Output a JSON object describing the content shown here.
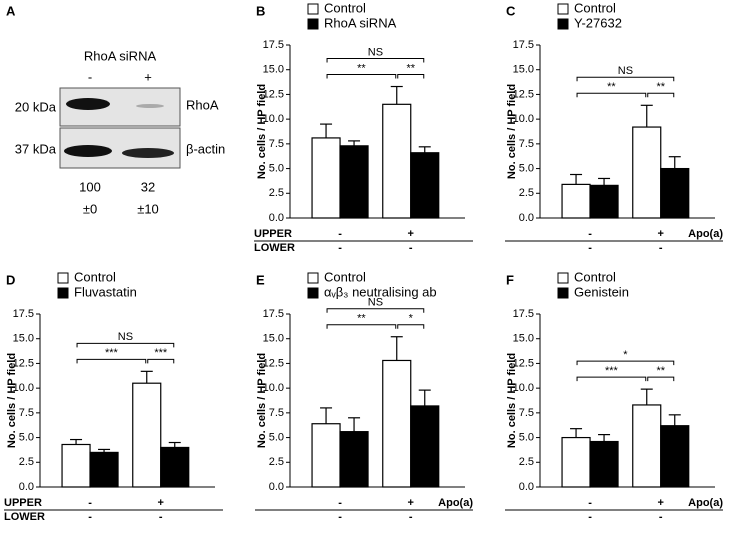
{
  "blot": {
    "panel": "A",
    "title": "RhoA siRNA",
    "lanes": [
      "-",
      "+"
    ],
    "markers": [
      "20 kDa",
      "37 kDa"
    ],
    "bands": [
      "RhoA",
      "β-actin"
    ],
    "quant": [
      [
        "100",
        "±0"
      ],
      [
        "32",
        "±10"
      ]
    ]
  },
  "chart_data": [
    {
      "type": "bar",
      "panel": "B",
      "ylabel": "No. cells / HP field",
      "ylim": [
        0,
        17.5
      ],
      "yticks": [
        {
          "value": 0,
          "label": "0.0"
        },
        2.5,
        {
          "value": 5,
          "label": "5.0"
        },
        7.5,
        {
          "value": 10,
          "label": "10.0"
        },
        12.5,
        {
          "value": 15,
          "label": "15.0"
        },
        17.5
      ],
      "series": [
        {
          "name": "Control",
          "color": "#ffffff",
          "values": [
            8.1,
            11.5
          ],
          "errors": [
            1.4,
            1.8
          ]
        },
        {
          "name": "RhoA siRNA",
          "color": "#000000",
          "values": [
            7.3,
            6.6
          ],
          "errors": [
            0.5,
            0.6
          ]
        }
      ],
      "brackets": [
        {
          "label": "NS",
          "from": 0,
          "to": 3
        },
        {
          "label": "**",
          "from": 0,
          "to": 2
        },
        {
          "label": "**",
          "from": 2,
          "to": 3
        }
      ],
      "conditions": [
        {
          "label": "UPPER",
          "values": [
            "-",
            "+"
          ]
        },
        {
          "label": "LOWER",
          "values": [
            "-",
            "-"
          ]
        }
      ],
      "condition_label_side": "left"
    },
    {
      "type": "bar",
      "panel": "C",
      "ylabel": "No. cells / HP field",
      "ylim": [
        0,
        17.5
      ],
      "yticks": [
        {
          "value": 0,
          "label": "0.0"
        },
        2.5,
        {
          "value": 5,
          "label": "5.0"
        },
        7.5,
        {
          "value": 10,
          "label": "10.0"
        },
        12.5,
        {
          "value": 15,
          "label": "15.0"
        },
        17.5
      ],
      "series": [
        {
          "name": "Control",
          "color": "#ffffff",
          "values": [
            3.4,
            9.2
          ],
          "errors": [
            1.0,
            2.2
          ]
        },
        {
          "name": "Y-27632",
          "color": "#000000",
          "values": [
            3.3,
            5.0
          ],
          "errors": [
            0.7,
            1.2
          ]
        }
      ],
      "brackets": [
        {
          "label": "NS",
          "from": 0,
          "to": 3
        },
        {
          "label": "**",
          "from": 0,
          "to": 2
        },
        {
          "label": "**",
          "from": 2,
          "to": 3
        }
      ],
      "conditions": [
        {
          "label": "Apo(a)",
          "values": [
            "-",
            "+"
          ]
        },
        {
          "values": [
            "-",
            "-"
          ]
        }
      ],
      "condition_label_side": "right"
    },
    {
      "type": "bar",
      "panel": "D",
      "ylabel": "No. cells / HP field",
      "ylim": [
        0,
        17.5
      ],
      "yticks": [
        {
          "value": 0,
          "label": "0.0"
        },
        2.5,
        {
          "value": 5,
          "label": "5.0"
        },
        7.5,
        {
          "value": 10,
          "label": "10.0"
        },
        12.5,
        {
          "value": 15,
          "label": "15.0"
        },
        17.5
      ],
      "series": [
        {
          "name": "Control",
          "color": "#ffffff",
          "values": [
            4.3,
            10.5
          ],
          "errors": [
            0.5,
            1.2
          ]
        },
        {
          "name": "Fluvastatin",
          "color": "#000000",
          "values": [
            3.5,
            4.0
          ],
          "errors": [
            0.3,
            0.5
          ]
        }
      ],
      "brackets": [
        {
          "label": "NS",
          "from": 0,
          "to": 3
        },
        {
          "label": "***",
          "from": 0,
          "to": 2
        },
        {
          "label": "***",
          "from": 2,
          "to": 3
        }
      ],
      "conditions": [
        {
          "label": "UPPER",
          "values": [
            "-",
            "+"
          ]
        },
        {
          "label": "LOWER",
          "values": [
            "-",
            "-"
          ]
        }
      ],
      "condition_label_side": "left"
    },
    {
      "type": "bar",
      "panel": "E",
      "ylabel": "No. cells / HP field",
      "ylim": [
        0,
        17.5
      ],
      "yticks": [
        {
          "value": 0,
          "label": "0.0"
        },
        2.5,
        {
          "value": 5,
          "label": "5.0"
        },
        7.5,
        {
          "value": 10,
          "label": "10.0"
        },
        12.5,
        {
          "value": 15,
          "label": "15.0"
        },
        17.5
      ],
      "series": [
        {
          "name": "Control",
          "color": "#ffffff",
          "values": [
            6.4,
            12.8
          ],
          "errors": [
            1.6,
            2.4
          ]
        },
        {
          "name": "αᵥβ₃ neutralising ab",
          "color": "#000000",
          "values": [
            5.6,
            8.2
          ],
          "errors": [
            1.4,
            1.6
          ]
        }
      ],
      "brackets": [
        {
          "label": "NS",
          "from": 0,
          "to": 3
        },
        {
          "label": "**",
          "from": 0,
          "to": 2
        },
        {
          "label": "*",
          "from": 2,
          "to": 3
        }
      ],
      "conditions": [
        {
          "label": "Apo(a)",
          "values": [
            "-",
            "+"
          ]
        },
        {
          "values": [
            "-",
            "-"
          ]
        }
      ],
      "condition_label_side": "right"
    },
    {
      "type": "bar",
      "panel": "F",
      "ylabel": "No. cells / HP field",
      "ylim": [
        0,
        17.5
      ],
      "yticks": [
        {
          "value": 0,
          "label": "0.0"
        },
        2.5,
        {
          "value": 5,
          "label": "5.0"
        },
        7.5,
        {
          "value": 10,
          "label": "10.0"
        },
        12.5,
        {
          "value": 15,
          "label": "15.0"
        },
        17.5
      ],
      "series": [
        {
          "name": "Control",
          "color": "#ffffff",
          "values": [
            5.0,
            8.3
          ],
          "errors": [
            0.9,
            1.6
          ]
        },
        {
          "name": "Genistein",
          "color": "#000000",
          "values": [
            4.6,
            6.2
          ],
          "errors": [
            0.7,
            1.1
          ]
        }
      ],
      "brackets": [
        {
          "label": "*",
          "from": 0,
          "to": 3
        },
        {
          "label": "***",
          "from": 0,
          "to": 2
        },
        {
          "label": "**",
          "from": 2,
          "to": 3
        }
      ],
      "conditions": [
        {
          "label": "Apo(a)",
          "values": [
            "-",
            "+"
          ]
        },
        {
          "values": [
            "-",
            "-"
          ]
        }
      ],
      "condition_label_side": "right"
    }
  ]
}
